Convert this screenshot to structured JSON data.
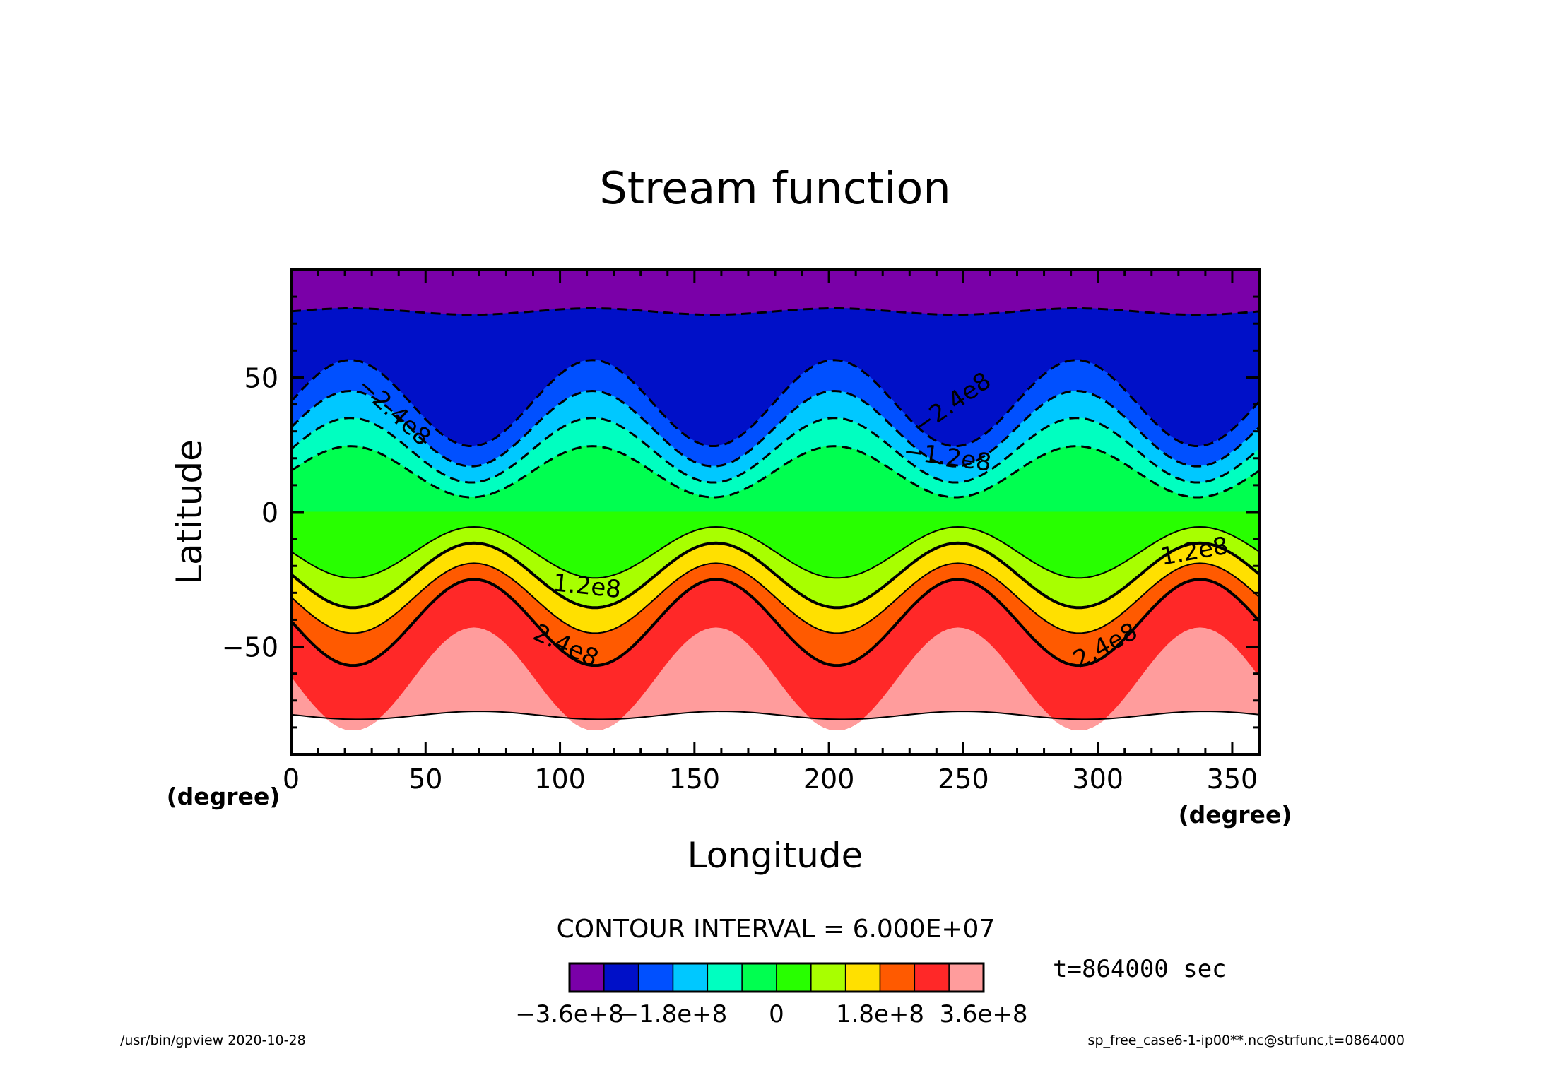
{
  "chart_data": {
    "type": "contour",
    "title": "Stream function",
    "xlabel": "Longitude",
    "ylabel": "Latitude",
    "x_unit": "(degree)",
    "y_unit": "(degree)",
    "xlim": [
      0,
      360
    ],
    "ylim": [
      -90,
      90
    ],
    "xticks": [
      "0",
      "50",
      "100",
      "150",
      "200",
      "250",
      "300",
      "350"
    ],
    "yticks": [
      "50",
      "0",
      "−50"
    ],
    "x_tick_values": [
      0,
      50,
      100,
      150,
      200,
      250,
      300,
      350
    ],
    "y_tick_values": [
      50,
      0,
      -50
    ],
    "contour_interval_text": "CONTOUR INTERVAL = 6.000E+07",
    "contour_interval": 60000000,
    "levels": [
      -360000000,
      -300000000,
      -240000000,
      -180000000,
      -120000000,
      -60000000,
      0,
      60000000,
      120000000,
      180000000,
      240000000,
      300000000,
      360000000
    ],
    "colorbar": {
      "colors": [
        "#7a00a8",
        "#0010c8",
        "#0050ff",
        "#00c8ff",
        "#00ffc0",
        "#00ff50",
        "#28ff00",
        "#a8ff00",
        "#ffe000",
        "#ff5a00",
        "#ff2828",
        "#ff9c9c"
      ],
      "tick_labels": [
        "−3.6e+8",
        "−1.8e+8",
        "0",
        "1.8e+8",
        "3.6e+8"
      ],
      "tick_values": [
        -360000000,
        -180000000,
        0,
        180000000,
        360000000
      ]
    },
    "wave": {
      "zonal_wavenumber": 4
    },
    "contours": [
      {
        "level": 360000000,
        "lat_mean": -75.5,
        "amplitude": 1.5,
        "phase_lon": 70,
        "style": "solid-thin"
      },
      {
        "level": 300000000,
        "lat_mean": -62,
        "amplitude": 19,
        "phase_lon": 68,
        "style": "fill-edge"
      },
      {
        "level": 240000000,
        "lat_mean": -41,
        "amplitude": 16,
        "phase_lon": 68,
        "style": "solid-thick",
        "label": "2.4e8"
      },
      {
        "level": 180000000,
        "lat_mean": -32,
        "amplitude": 13,
        "phase_lon": 68,
        "style": "solid-thin"
      },
      {
        "level": 120000000,
        "lat_mean": -23.5,
        "amplitude": 12,
        "phase_lon": 68,
        "style": "solid-thick",
        "label": "1.2e8"
      },
      {
        "level": 60000000,
        "lat_mean": -15,
        "amplitude": 9.5,
        "phase_lon": 68,
        "style": "solid-thin"
      },
      {
        "level": 0,
        "lat_mean": 0,
        "amplitude": 0,
        "phase_lon": 0,
        "style": "fill-edge"
      },
      {
        "level": -60000000,
        "lat_mean": 15,
        "amplitude": 9.5,
        "phase_lon": 22,
        "style": "dashed"
      },
      {
        "level": -120000000,
        "lat_mean": 23,
        "amplitude": 12,
        "phase_lon": 22,
        "style": "dashed",
        "label": "−1.2e8"
      },
      {
        "level": -180000000,
        "lat_mean": 31,
        "amplitude": 14,
        "phase_lon": 22,
        "style": "dashed"
      },
      {
        "level": -240000000,
        "lat_mean": 40.5,
        "amplitude": 16,
        "phase_lon": 22,
        "style": "dashed",
        "label": "−2.4e8"
      },
      {
        "level": -300000000,
        "lat_mean": 74.5,
        "amplitude": 1.2,
        "phase_lon": 22,
        "style": "dashed"
      }
    ],
    "contour_labels": [
      {
        "text": "−2.4e8",
        "lon": 38,
        "lat": 37,
        "rotation": 42
      },
      {
        "text": "−2.4e8",
        "lon": 246,
        "lat": 40,
        "rotation": -35
      },
      {
        "text": "−1.2e8",
        "lon": 244,
        "lat": 20,
        "rotation": 8
      },
      {
        "text": "1.2e8",
        "lon": 110,
        "lat": -28,
        "rotation": 6
      },
      {
        "text": "1.2e8",
        "lon": 336,
        "lat": -15,
        "rotation": -10
      },
      {
        "text": "2.4e8",
        "lon": 102,
        "lat": -50,
        "rotation": 25
      },
      {
        "text": "2.4e8",
        "lon": 303,
        "lat": -50,
        "rotation": -28
      }
    ],
    "time_label": "t=864000 sec"
  },
  "footer": {
    "left": "/usr/bin/gpview   2020-10-28",
    "right": "sp_free_case6-1-ip00**.nc@strfunc,t=0864000"
  }
}
